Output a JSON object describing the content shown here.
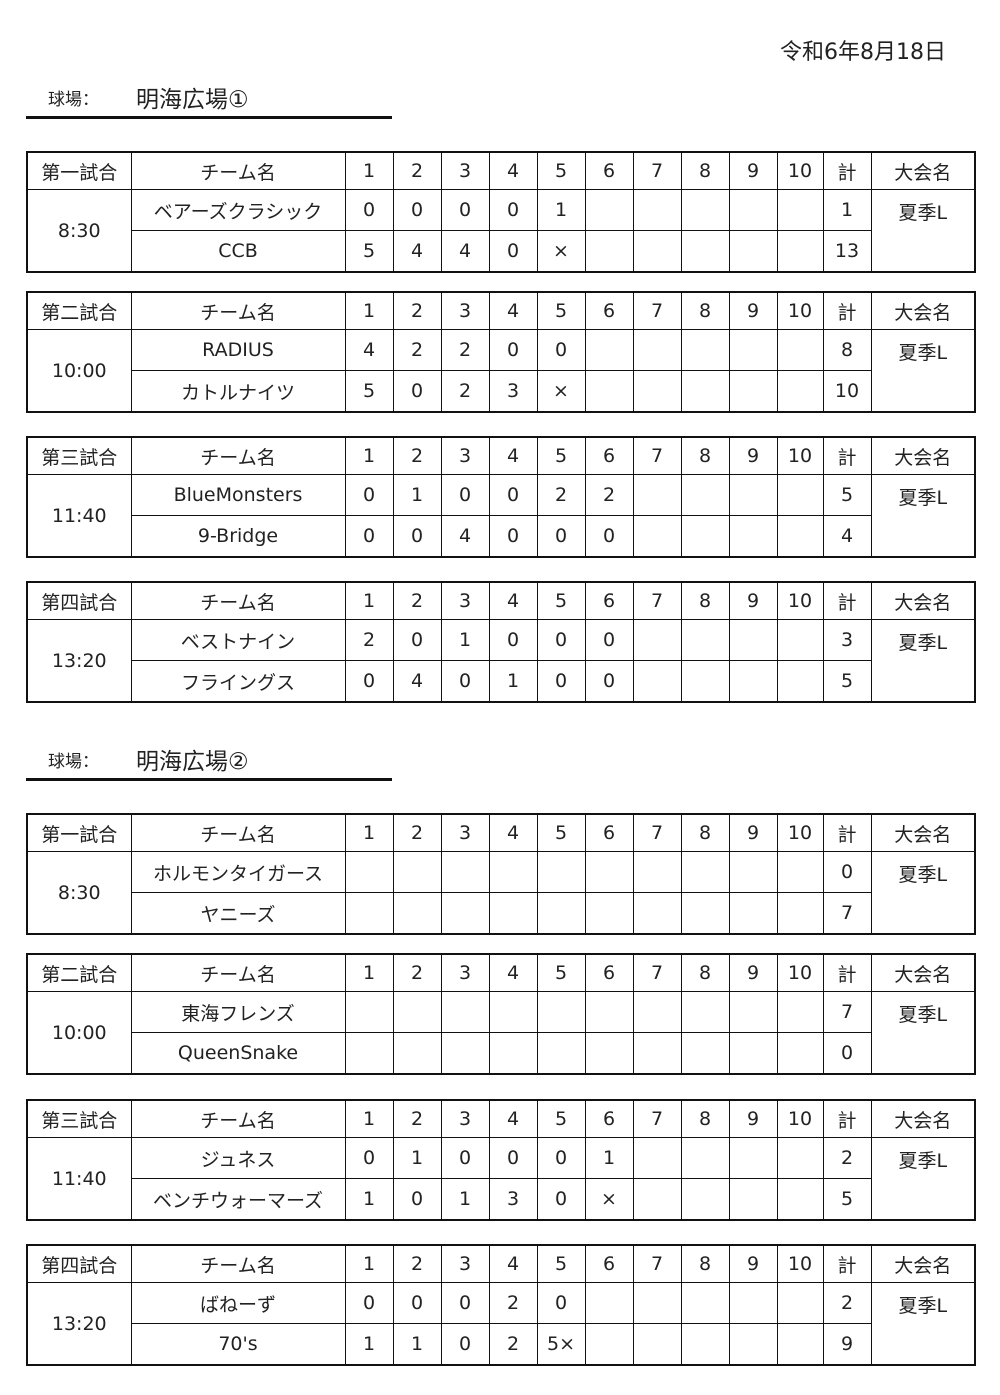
{
  "date": "令和6年8月18日",
  "header_labels": {
    "team": "チーム名",
    "innings": [
      "1",
      "2",
      "3",
      "4",
      "5",
      "6",
      "7",
      "8",
      "9",
      "10"
    ],
    "total": "計",
    "tournament": "大会名"
  },
  "venues": [
    {
      "label": "球場：",
      "name": "明海広場①",
      "games": [
        {
          "title": "第一試合",
          "time": "8:30",
          "tournament": "夏季L",
          "teams": [
            {
              "name": "ベアーズクラシック",
              "scores": [
                "0",
                "0",
                "0",
                "0",
                "1",
                "",
                "",
                "",
                "",
                ""
              ],
              "total": "1"
            },
            {
              "name": "CCB",
              "scores": [
                "5",
                "4",
                "4",
                "0",
                "×",
                "",
                "",
                "",
                "",
                ""
              ],
              "total": "13"
            }
          ]
        },
        {
          "title": "第二試合",
          "time": "10:00",
          "tournament": "夏季L",
          "teams": [
            {
              "name": "RADIUS",
              "scores": [
                "4",
                "2",
                "2",
                "0",
                "0",
                "",
                "",
                "",
                "",
                ""
              ],
              "total": "8"
            },
            {
              "name": "カトルナイツ",
              "scores": [
                "5",
                "0",
                "2",
                "3",
                "×",
                "",
                "",
                "",
                "",
                ""
              ],
              "total": "10"
            }
          ]
        },
        {
          "title": "第三試合",
          "time": "11:40",
          "tournament": "夏季L",
          "teams": [
            {
              "name": "BlueMonsters",
              "scores": [
                "0",
                "1",
                "0",
                "0",
                "2",
                "2",
                "",
                "",
                "",
                ""
              ],
              "total": "5"
            },
            {
              "name": "9-Bridge",
              "scores": [
                "0",
                "0",
                "4",
                "0",
                "0",
                "0",
                "",
                "",
                "",
                ""
              ],
              "total": "4"
            }
          ]
        },
        {
          "title": "第四試合",
          "time": "13:20",
          "tournament": "夏季L",
          "teams": [
            {
              "name": "ベストナイン",
              "scores": [
                "2",
                "0",
                "1",
                "0",
                "0",
                "0",
                "",
                "",
                "",
                ""
              ],
              "total": "3"
            },
            {
              "name": "フライングス",
              "scores": [
                "0",
                "4",
                "0",
                "1",
                "0",
                "0",
                "",
                "",
                "",
                ""
              ],
              "total": "5"
            }
          ]
        }
      ]
    },
    {
      "label": "球場：",
      "name": "明海広場②",
      "games": [
        {
          "title": "第一試合",
          "time": "8:30",
          "tournament": "夏季L",
          "teams": [
            {
              "name": "ホルモンタイガース",
              "scores": [
                "",
                "",
                "",
                "",
                "",
                "",
                "",
                "",
                "",
                ""
              ],
              "total": "0"
            },
            {
              "name": "ヤニーズ",
              "scores": [
                "",
                "",
                "",
                "",
                "",
                "",
                "",
                "",
                "",
                ""
              ],
              "total": "7"
            }
          ]
        },
        {
          "title": "第二試合",
          "time": "10:00",
          "tournament": "夏季L",
          "teams": [
            {
              "name": "東海フレンズ",
              "scores": [
                "",
                "",
                "",
                "",
                "",
                "",
                "",
                "",
                "",
                ""
              ],
              "total": "7"
            },
            {
              "name": "QueenSnake",
              "scores": [
                "",
                "",
                "",
                "",
                "",
                "",
                "",
                "",
                "",
                ""
              ],
              "total": "0"
            }
          ]
        },
        {
          "title": "第三試合",
          "time": "11:40",
          "tournament": "夏季L",
          "teams": [
            {
              "name": "ジュネス",
              "scores": [
                "0",
                "1",
                "0",
                "0",
                "0",
                "1",
                "",
                "",
                "",
                ""
              ],
              "total": "2"
            },
            {
              "name": "ベンチウォーマーズ",
              "scores": [
                "1",
                "0",
                "1",
                "3",
                "0",
                "×",
                "",
                "",
                "",
                ""
              ],
              "total": "5"
            }
          ]
        },
        {
          "title": "第四試合",
          "time": "13:20",
          "tournament": "夏季L",
          "teams": [
            {
              "name": "ばねーず",
              "scores": [
                "0",
                "0",
                "0",
                "2",
                "0",
                "",
                "",
                "",
                "",
                ""
              ],
              "total": "2"
            },
            {
              "name": "70's",
              "scores": [
                "1",
                "1",
                "0",
                "2",
                "5×",
                "",
                "",
                "",
                "",
                ""
              ],
              "total": "9"
            }
          ]
        }
      ]
    }
  ]
}
